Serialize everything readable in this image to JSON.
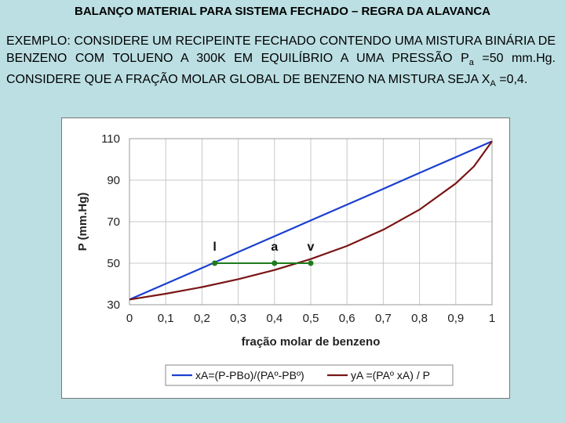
{
  "slide": {
    "title": "BALANÇO MATERIAL PARA SISTEMA FECHADO – REGRA DA ALAVANCA",
    "desc_part1": "EXEMPLO: CONSIDERE UM RECIPEINTE FECHADO CONTENDO UMA MISTURA BINÁRIA DE BENZENO COM TOLUENO A 300K EM EQUILÍBRIO A UMA PRESSÃO P",
    "desc_sub_a": "a",
    "desc_part2": " =50 mm.Hg. CONSIDERE QUE A FRAÇÃO MOLAR GLOBAL DE BENZENO NA MISTURA SEJA X",
    "desc_sub_A": "A",
    "desc_part3": " =0,4."
  },
  "chart_data": {
    "type": "line",
    "xlabel": "fração molar de benzeno",
    "ylabel": "P (mm.Hg)",
    "xlim": [
      0,
      1
    ],
    "ylim": [
      30,
      110
    ],
    "xticks": [
      0,
      0.1,
      0.2,
      0.3,
      0.4,
      0.5,
      0.6,
      0.7,
      0.8,
      0.9,
      1
    ],
    "xtick_labels": [
      "0",
      "0,1",
      "0,2",
      "0,3",
      "0,4",
      "0,5",
      "0,6",
      "0,7",
      "0,8",
      "0,9",
      "1"
    ],
    "yticks": [
      30,
      50,
      70,
      90,
      110
    ],
    "ytick_labels": [
      "30",
      "50",
      "70",
      "90",
      "110"
    ],
    "grid": true,
    "legend_position": "bottom",
    "series": [
      {
        "name": "xA=(P-PBo)/(PAº-PBº)",
        "color": "#1a3fd0",
        "x": [
          0,
          0.1,
          0.2,
          0.3,
          0.4,
          0.5,
          0.6,
          0.7,
          0.8,
          0.9,
          1
        ],
        "y": [
          32.5,
          40.1,
          47.7,
          55.4,
          63.0,
          70.6,
          78.2,
          85.8,
          93.5,
          101.1,
          108.7
        ]
      },
      {
        "name": "yA =(PAº xA) / P",
        "color": "#7a1515",
        "x": [
          0,
          0.1,
          0.2,
          0.3,
          0.4,
          0.5,
          0.6,
          0.7,
          0.8,
          0.9,
          0.95,
          1
        ],
        "y": [
          32.5,
          35.3,
          38.5,
          42.3,
          46.7,
          52.0,
          58.3,
          66.1,
          75.8,
          88.4,
          96.6,
          108.7
        ]
      }
    ],
    "tie_line": {
      "color": "#1d7a1d",
      "pressure": 50,
      "points": [
        {
          "label": "l",
          "x": 0.235,
          "y": 50
        },
        {
          "label": "a",
          "x": 0.4,
          "y": 50
        },
        {
          "label": "v",
          "x": 0.5,
          "y": 50
        }
      ]
    }
  }
}
